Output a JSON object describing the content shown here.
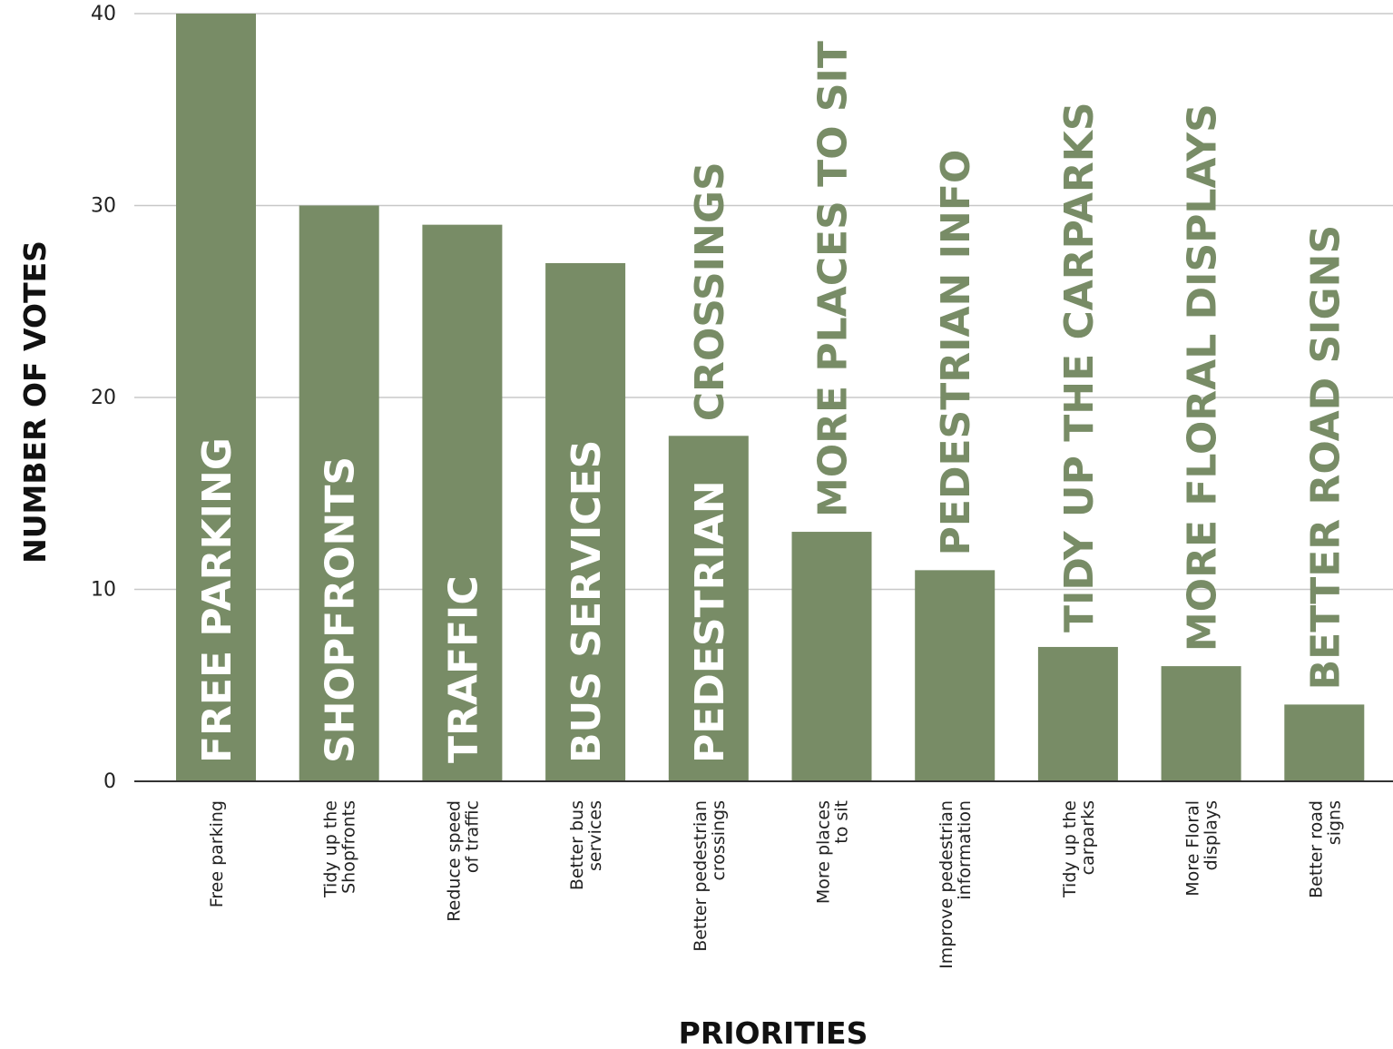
{
  "chart_data": {
    "type": "bar",
    "title": "",
    "xlabel": "PRIORITIES",
    "ylabel": "NUMBER OF VOTES",
    "ylim": [
      0,
      40
    ],
    "yticks": [
      0,
      10,
      20,
      30,
      40
    ],
    "grid": true,
    "bar_color": "#788c66",
    "bar_label_inside_color": "#ffffff",
    "bar_label_outside_color": "#788c66",
    "categories": [
      "Free parking",
      "Tidy up the Shopfronts",
      "Reduce speed of traffic",
      "Better bus services",
      "Better pedestrian crossings",
      "More places to sit",
      "Improve pedestrian information",
      "Tidy up the carparks",
      "More Floral displays",
      "Better road signs"
    ],
    "category_lines": [
      [
        "Free parking"
      ],
      [
        "Tidy up the",
        "Shopfronts"
      ],
      [
        "Reduce speed",
        "of traffic"
      ],
      [
        "Better bus",
        "services"
      ],
      [
        "Better pedestrian",
        "crossings"
      ],
      [
        "More places",
        "to sit"
      ],
      [
        "Improve pedestrian",
        "information"
      ],
      [
        "Tidy up the",
        "carparks"
      ],
      [
        "More Floral",
        "displays"
      ],
      [
        "Better road",
        "signs"
      ]
    ],
    "values": [
      40,
      30,
      29,
      27,
      18,
      13,
      11,
      7,
      6,
      4
    ],
    "bar_labels": [
      {
        "inside": "FREE PARKING",
        "outside": ""
      },
      {
        "inside": "SHOPFRONTS",
        "outside": ""
      },
      {
        "inside": "TRAFFIC",
        "outside": ""
      },
      {
        "inside": "BUS SERVICES",
        "outside": ""
      },
      {
        "inside": "PEDESTRIAN",
        "outside": "CROSSINGS"
      },
      {
        "inside": "",
        "outside": "MORE PLACES TO SIT"
      },
      {
        "inside": "",
        "outside": "PEDESTRIAN INFO"
      },
      {
        "inside": "",
        "outside": "TIDY UP THE CARPARKS"
      },
      {
        "inside": "",
        "outside": "MORE FLORAL DISPLAYS"
      },
      {
        "inside": "",
        "outside": "BETTER ROAD SIGNS"
      }
    ]
  }
}
